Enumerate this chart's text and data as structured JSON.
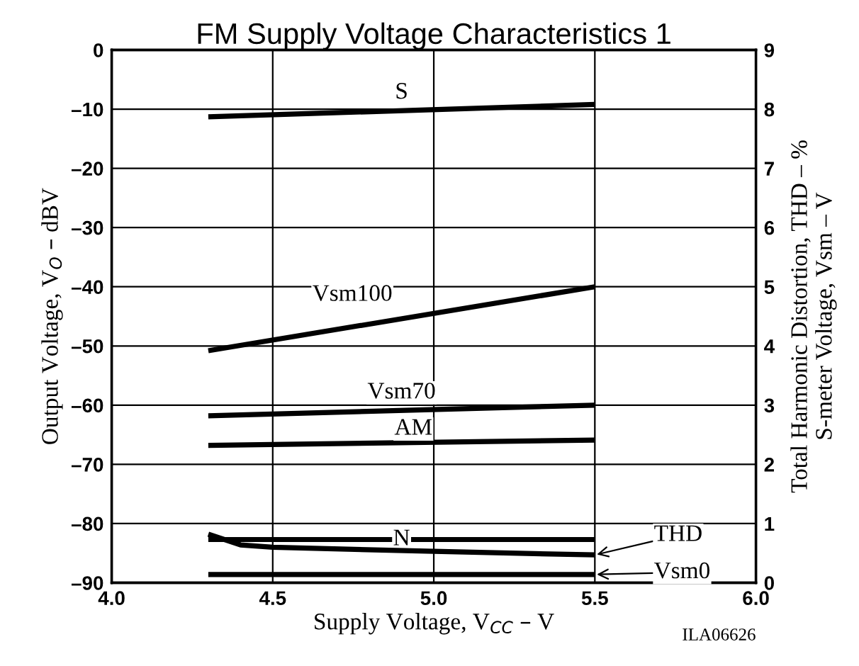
{
  "chart_data": {
    "type": "line",
    "title": "FM Supply Voltage Characteristics 1",
    "xlabel": "Supply Voltage, V$_{CC}$ – V",
    "ylabel": "Output Voltage, V$_{O}$ – dBV",
    "y2label": "Total Harmonic Distortion, THD – %\nS-meter Voltage, Vsm – V",
    "annotations": [
      "ILA06626"
    ],
    "xlim": [
      4,
      6
    ],
    "xticks": [
      {
        "value": 4,
        "label": "4.0"
      },
      {
        "value": 4.5,
        "label": "4.5"
      },
      {
        "value": 5,
        "label": "5.0"
      },
      {
        "value": 5.5,
        "label": "5.5"
      },
      {
        "value": 6,
        "label": "6.0"
      }
    ],
    "ylim": [
      -90,
      0
    ],
    "yticks": [
      0,
      {
        "value": -10,
        "label": "–10"
      },
      {
        "value": -20,
        "label": "–20"
      },
      {
        "value": -30,
        "label": "–30"
      },
      {
        "value": -40,
        "label": "–40"
      },
      {
        "value": -50,
        "label": "–50"
      },
      {
        "value": -60,
        "label": "–60"
      },
      {
        "value": -70,
        "label": "–70"
      },
      {
        "value": -80,
        "label": "–80"
      },
      {
        "value": -90,
        "label": "–90"
      }
    ],
    "y2lim": [
      0,
      9
    ],
    "y2ticks": [
      0,
      1,
      2,
      3,
      4,
      5,
      6,
      7,
      8,
      9
    ],
    "grid": true,
    "legend": "bottom right",
    "series": [
      {
        "name": "S",
        "color": "#000000",
        "x": [
          4.3,
          5.5
        ],
        "values": [
          -11.3,
          -9.2
        ]
      },
      {
        "name": "Vsm100",
        "color": "#000000",
        "axis": "y2",
        "x": [
          4.3,
          5.5
        ],
        "values": [
          3.92,
          5.0
        ]
      },
      {
        "name": "Vsm70",
        "color": "#000000",
        "axis": "y2",
        "x": [
          4.3,
          5.5
        ],
        "values": [
          2.82,
          3.0
        ]
      },
      {
        "name": "AM",
        "color": "#000000",
        "x": [
          4.3,
          5.5
        ],
        "values": [
          -66.8,
          -65.9
        ]
      },
      {
        "name": "N",
        "color": "#000000",
        "x": [
          4.3,
          5.5
        ],
        "values": [
          -82.7,
          -82.7
        ]
      },
      {
        "name": "THD",
        "color": "#000000",
        "axis": "y2",
        "x": [
          4.3,
          4.4,
          4.5,
          5.0,
          5.5
        ],
        "values": [
          0.82,
          0.64,
          0.6,
          0.53,
          0.47
        ]
      },
      {
        "name": "Vsm0",
        "color": "#000000",
        "axis": "y2",
        "x": [
          4.3,
          5.5
        ],
        "values": [
          0.14,
          0.14
        ]
      }
    ]
  }
}
